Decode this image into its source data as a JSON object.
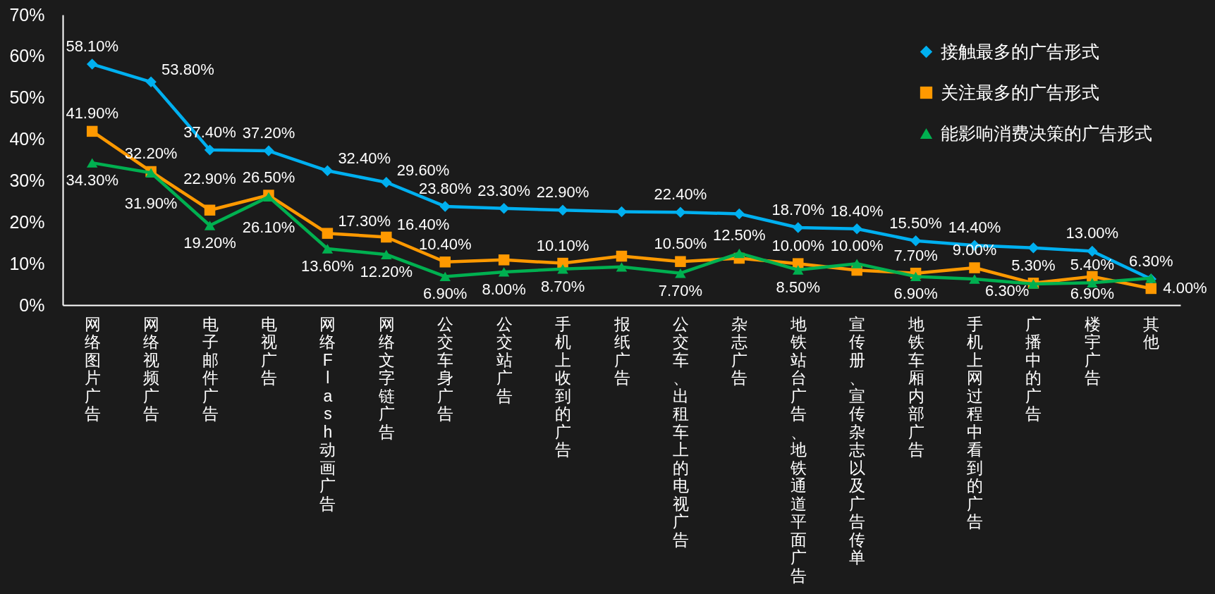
{
  "chart_data": {
    "type": "line",
    "categories": [
      "网络图片广告",
      "网络视频广告",
      "电子邮件广告",
      "电视广告",
      "网络Flash 动画广告",
      "网络文字链广告",
      "公交车身广告",
      "公交站广告",
      "手机上收到的广告",
      "报纸广告",
      "公交车、出租车上的电视广告",
      "杂志广告",
      "地铁站台广告、地铁通道平面广告",
      "宣传册、宣传杂志以及广告传单",
      "地铁车厢内部广告",
      "手机上网过程中看到的广告",
      "广播中的广告",
      "楼宇广告",
      "其他"
    ],
    "series": [
      {
        "name": "接触最多的广告形式",
        "color": "#00b0f0",
        "marker": "diamond",
        "values": [
          58.1,
          53.8,
          37.4,
          37.2,
          32.4,
          29.6,
          23.8,
          23.3,
          22.9,
          22.5,
          22.4,
          22.0,
          18.7,
          18.4,
          15.5,
          14.4,
          13.8,
          13.0,
          6.3
        ],
        "value_labels": [
          "58.10%",
          "53.80%",
          "37.40%",
          "37.20%",
          "32.40%",
          "29.60%",
          "23.80%",
          "23.30%",
          "22.90%",
          null,
          "22.40%",
          null,
          "18.70%",
          "18.40%",
          "15.50%",
          "14.40%",
          null,
          "13.00%",
          "6.30%"
        ]
      },
      {
        "name": "关注最多的广告形式",
        "color": "#ff9900",
        "marker": "square",
        "values": [
          41.9,
          32.2,
          22.9,
          26.5,
          17.3,
          16.4,
          10.4,
          10.9,
          10.1,
          11.8,
          10.5,
          11.3,
          10.0,
          8.4,
          7.7,
          9.0,
          5.3,
          6.9,
          4.0
        ],
        "value_labels": [
          "41.90%",
          "32.20%",
          "22.90%",
          "26.50%",
          "17.30%",
          "16.40%",
          "10.40%",
          null,
          "10.10%",
          null,
          "10.50%",
          null,
          "10.00%",
          null,
          "7.70%",
          "9.00%",
          "5.30%",
          "6.90%",
          "4.00%"
        ]
      },
      {
        "name": "能影响消费决策的广告形式",
        "color": "#00b050",
        "marker": "triangle",
        "values": [
          34.3,
          31.9,
          19.2,
          26.1,
          13.6,
          12.2,
          6.9,
          8.0,
          8.7,
          9.2,
          7.7,
          12.5,
          8.5,
          10.0,
          6.9,
          6.3,
          5.1,
          5.4,
          6.5
        ],
        "value_labels": [
          "34.30%",
          "31.90%",
          "19.20%",
          "26.10%",
          "13.60%",
          "12.20%",
          "6.90%",
          "8.00%",
          "8.70%",
          null,
          "7.70%",
          "12.50%",
          "8.50%",
          "10.00%",
          "6.90%",
          "6.30%",
          null,
          "5.40%",
          null
        ]
      }
    ],
    "ylim": [
      0,
      70
    ],
    "yticks": [
      {
        "value": 0,
        "label": "0%"
      },
      {
        "value": 10,
        "label": "10%"
      },
      {
        "value": 20,
        "label": "20%"
      },
      {
        "value": 30,
        "label": "30%"
      },
      {
        "value": 40,
        "label": "40%"
      },
      {
        "value": 50,
        "label": "50%"
      },
      {
        "value": 60,
        "label": "60%"
      },
      {
        "value": 70,
        "label": "70%"
      }
    ],
    "legend": "top right",
    "line_style": "solid"
  }
}
